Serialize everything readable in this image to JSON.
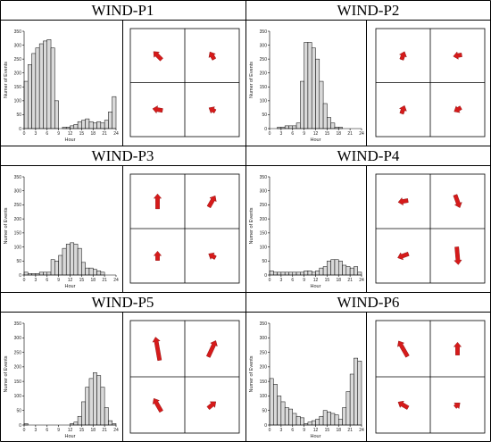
{
  "chart_data": [
    {
      "type": "bar",
      "title": "WIND-P1",
      "xlabel": "Hour",
      "ylabel": "Numer of Events",
      "xlim": [
        0,
        24
      ],
      "ylim": [
        0,
        350
      ],
      "x_ticks": [
        "0",
        "3",
        "6",
        "9",
        "12",
        "15",
        "18",
        "21",
        "24"
      ],
      "y_ticks": [
        "0",
        "50",
        "100",
        "150",
        "200",
        "250",
        "300",
        "350"
      ],
      "values": [
        170,
        230,
        270,
        290,
        305,
        315,
        320,
        290,
        100,
        0,
        5,
        5,
        10,
        15,
        25,
        30,
        35,
        25,
        20,
        25,
        20,
        30,
        60,
        115
      ],
      "quadrant_arrows": [
        {
          "quadrant": "top-left",
          "direction_deg": 135,
          "magnitude": 0.55
        },
        {
          "quadrant": "top-right",
          "direction_deg": 150,
          "magnitude": 0.35
        },
        {
          "quadrant": "bottom-left",
          "direction_deg": 100,
          "magnitude": 0.45
        },
        {
          "quadrant": "bottom-right",
          "direction_deg": 120,
          "magnitude": 0.25
        }
      ]
    },
    {
      "type": "bar",
      "title": "WIND-P2",
      "xlabel": "Hour",
      "ylabel": "Numer of Events",
      "xlim": [
        0,
        24
      ],
      "ylim": [
        0,
        350
      ],
      "x_ticks": [
        "0",
        "3",
        "6",
        "9",
        "12",
        "15",
        "18",
        "21",
        "24"
      ],
      "y_ticks": [
        "0",
        "50",
        "100",
        "150",
        "200",
        "250",
        "300",
        "350"
      ],
      "values": [
        0,
        0,
        5,
        5,
        10,
        10,
        10,
        20,
        170,
        310,
        310,
        290,
        250,
        170,
        90,
        40,
        20,
        5,
        5,
        0,
        0,
        0,
        0,
        0
      ],
      "quadrant_arrows": [
        {
          "quadrant": "top-left",
          "direction_deg": 200,
          "magnitude": 0.35
        },
        {
          "quadrant": "top-right",
          "direction_deg": 80,
          "magnitude": 0.35
        },
        {
          "quadrant": "bottom-left",
          "direction_deg": 200,
          "magnitude": 0.35
        },
        {
          "quadrant": "bottom-right",
          "direction_deg": 60,
          "magnitude": 0.3
        }
      ]
    },
    {
      "type": "bar",
      "title": "WIND-P3",
      "xlabel": "Hour",
      "ylabel": "Numer of Events",
      "xlim": [
        0,
        24
      ],
      "ylim": [
        0,
        350
      ],
      "x_ticks": [
        "0",
        "3",
        "6",
        "9",
        "12",
        "15",
        "18",
        "21",
        "24"
      ],
      "y_ticks": [
        "0",
        "50",
        "100",
        "150",
        "200",
        "250",
        "300",
        "350"
      ],
      "values": [
        10,
        5,
        5,
        5,
        10,
        10,
        10,
        55,
        50,
        70,
        95,
        110,
        115,
        110,
        95,
        45,
        25,
        25,
        20,
        15,
        10,
        0,
        0,
        0
      ],
      "quadrant_arrows": [
        {
          "quadrant": "top-left",
          "direction_deg": 180,
          "magnitude": 0.8
        },
        {
          "quadrant": "top-right",
          "direction_deg": 210,
          "magnitude": 0.65
        },
        {
          "quadrant": "bottom-left",
          "direction_deg": 180,
          "magnitude": 0.4
        },
        {
          "quadrant": "bottom-right",
          "direction_deg": 120,
          "magnitude": 0.3
        }
      ]
    },
    {
      "type": "bar",
      "title": "WIND-P4",
      "xlabel": "Hour",
      "ylabel": "Numer of Events",
      "xlim": [
        0,
        24
      ],
      "ylim": [
        0,
        350
      ],
      "x_ticks": [
        "0",
        "3",
        "6",
        "9",
        "12",
        "15",
        "18",
        "21",
        "24"
      ],
      "y_ticks": [
        "0",
        "50",
        "100",
        "150",
        "200",
        "250",
        "300",
        "350"
      ],
      "values": [
        15,
        10,
        10,
        10,
        10,
        10,
        10,
        10,
        10,
        15,
        15,
        10,
        15,
        25,
        30,
        50,
        55,
        55,
        50,
        35,
        30,
        25,
        30,
        10
      ],
      "quadrant_arrows": [
        {
          "quadrant": "top-left",
          "direction_deg": 80,
          "magnitude": 0.45
        },
        {
          "quadrant": "top-right",
          "direction_deg": -20,
          "magnitude": 0.7
        },
        {
          "quadrant": "bottom-left",
          "direction_deg": 70,
          "magnitude": 0.55
        },
        {
          "quadrant": "bottom-right",
          "direction_deg": -5,
          "magnitude": 1.0
        }
      ]
    },
    {
      "type": "bar",
      "title": "WIND-P5",
      "xlabel": "Hour",
      "ylabel": "Numer of Events",
      "xlim": [
        0,
        24
      ],
      "ylim": [
        0,
        350
      ],
      "x_ticks": [
        "0",
        "3",
        "6",
        "9",
        "12",
        "15",
        "18",
        "21",
        "24"
      ],
      "y_ticks": [
        "0",
        "50",
        "100",
        "150",
        "200",
        "250",
        "300",
        "350"
      ],
      "values": [
        5,
        0,
        0,
        0,
        0,
        0,
        0,
        0,
        0,
        0,
        0,
        0,
        5,
        10,
        30,
        80,
        130,
        160,
        180,
        170,
        130,
        60,
        15,
        5
      ],
      "quadrant_arrows": [
        {
          "quadrant": "top-left",
          "direction_deg": 170,
          "magnitude": 1.4
        },
        {
          "quadrant": "top-right",
          "direction_deg": 205,
          "magnitude": 1.0
        },
        {
          "quadrant": "bottom-left",
          "direction_deg": 150,
          "magnitude": 0.8
        },
        {
          "quadrant": "bottom-right",
          "direction_deg": 230,
          "magnitude": 0.45
        }
      ]
    },
    {
      "type": "bar",
      "title": "WIND-P6",
      "xlabel": "Hour",
      "ylabel": "Numer of Events",
      "xlim": [
        0,
        24
      ],
      "ylim": [
        0,
        350
      ],
      "x_ticks": [
        "0",
        "3",
        "6",
        "9",
        "12",
        "15",
        "18",
        "21",
        "24"
      ],
      "y_ticks": [
        "0",
        "50",
        "100",
        "150",
        "200",
        "250",
        "300",
        "350"
      ],
      "values": [
        160,
        140,
        100,
        80,
        60,
        55,
        40,
        30,
        25,
        5,
        10,
        15,
        20,
        30,
        50,
        45,
        40,
        35,
        20,
        60,
        115,
        175,
        230,
        220
      ],
      "quadrant_arrows": [
        {
          "quadrant": "top-left",
          "direction_deg": 150,
          "magnitude": 1.0
        },
        {
          "quadrant": "top-right",
          "direction_deg": 180,
          "magnitude": 0.65
        },
        {
          "quadrant": "bottom-left",
          "direction_deg": 120,
          "magnitude": 0.55
        },
        {
          "quadrant": "bottom-right",
          "direction_deg": 230,
          "magnitude": 0.2
        }
      ]
    }
  ]
}
